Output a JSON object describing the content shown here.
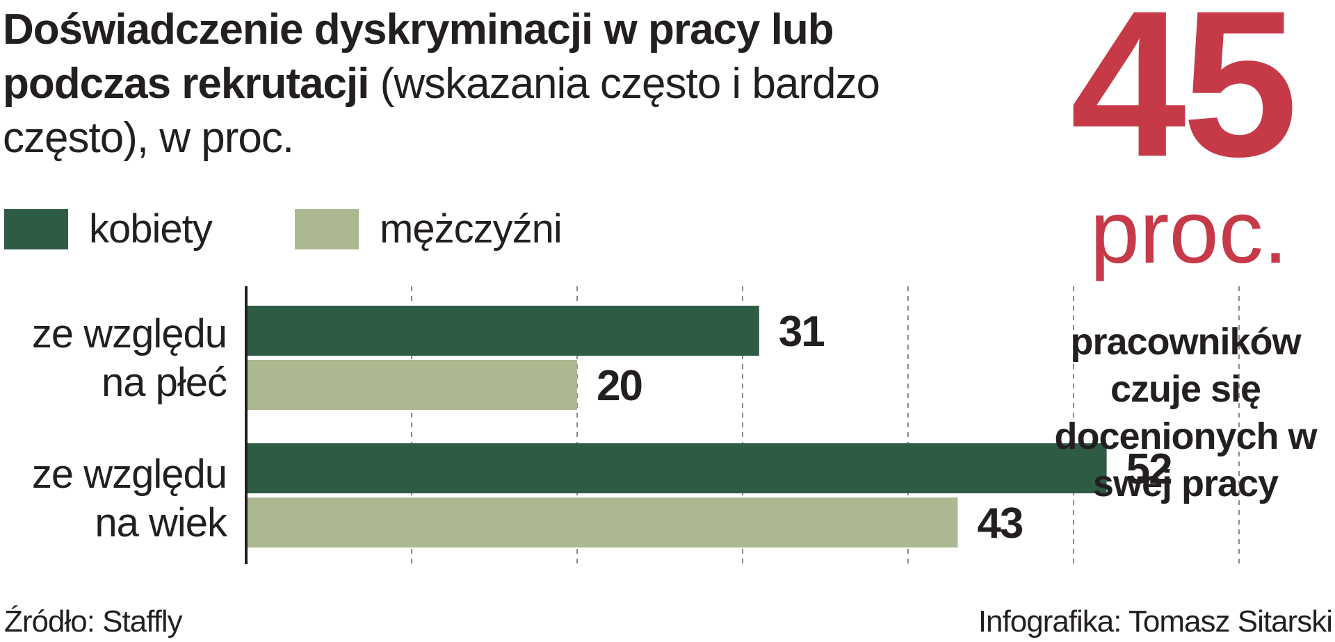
{
  "title": {
    "bold": "Doświadczenie dyskryminacji w pracy lub podczas rekrutacji",
    "light": "(wskazania często i bardzo często), w proc."
  },
  "legend": {
    "women": "kobiety",
    "men": "mężczyźni"
  },
  "colors": {
    "women": "#2e5b43",
    "men": "#abb890",
    "accent": "#c63a48",
    "axis": "#231f20",
    "grid": "#8a8a8a"
  },
  "chart_data": {
    "type": "bar",
    "orientation": "horizontal",
    "categories": [
      "ze względu na płeć",
      "ze względu na wiek"
    ],
    "series": [
      {
        "name": "kobiety",
        "values": [
          31,
          52
        ]
      },
      {
        "name": "mężczyźni",
        "values": [
          20,
          43
        ]
      }
    ],
    "xlim": [
      0,
      60
    ],
    "grid": true,
    "legend_position": "top-left"
  },
  "category_lines": [
    [
      "ze względu",
      "na płeć"
    ],
    [
      "ze względu",
      "na wiek"
    ]
  ],
  "highlight": {
    "number": "45",
    "unit": "proc.",
    "text": "pracowników czuje się docenionych w swej pracy"
  },
  "footer": {
    "source": "Źródło: Staffly",
    "credit": "Infografika: Tomasz Sitarski"
  }
}
